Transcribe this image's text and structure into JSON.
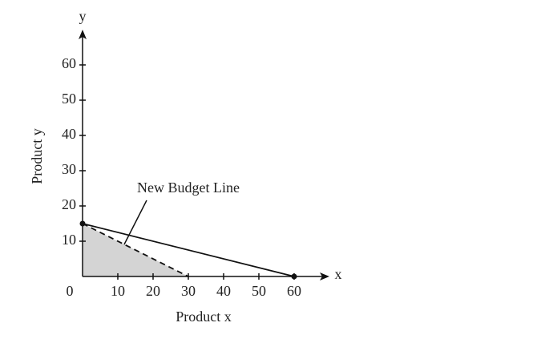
{
  "chart_data": {
    "type": "line",
    "x_label": "Product x",
    "y_label": "Product y",
    "x_axis_name": "x",
    "y_axis_name": "y",
    "xlim": [
      0,
      70
    ],
    "ylim": [
      0,
      70
    ],
    "xticks": [
      0,
      10,
      20,
      30,
      40,
      50,
      60
    ],
    "yticks": [
      10,
      20,
      30,
      40,
      50,
      60
    ],
    "series": [
      {
        "x": [
          0,
          60
        ],
        "values": [
          15,
          0
        ],
        "color": "#111111",
        "style": "solid",
        "markers": true
      },
      {
        "name": "New Budget Line",
        "x": [
          0,
          30
        ],
        "values": [
          15,
          0
        ],
        "color": "#111111",
        "style": "dashed",
        "shaded": true,
        "fill": "#d4d4d4"
      }
    ]
  }
}
